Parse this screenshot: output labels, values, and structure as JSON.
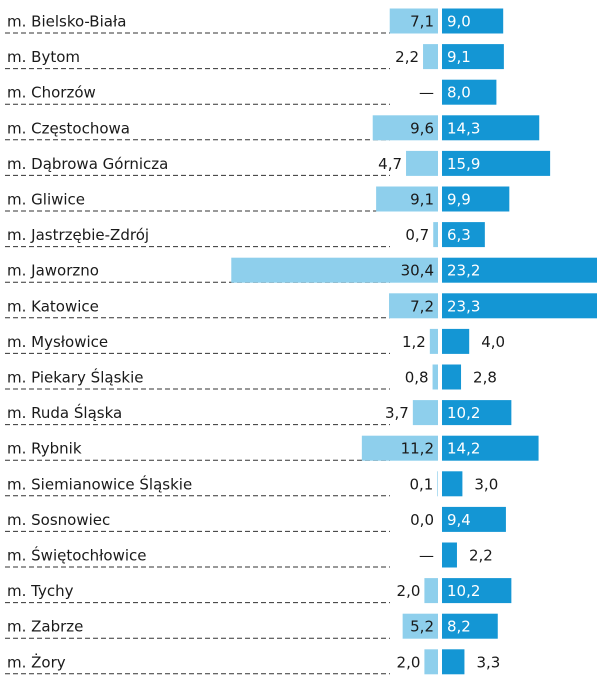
{
  "chart_data": {
    "type": "diverging-bar",
    "categories": [
      "m. Bielsko-Biała",
      "m. Bytom",
      "m. Chorzów",
      "m. Częstochowa",
      "m. Dąbrowa Górnicza",
      "m. Gliwice",
      "m. Jastrzębie-Zdrój",
      "m. Jaworzno",
      "m. Katowice",
      "m. Mysłowice",
      "m. Piekary Śląskie",
      "m. Ruda Śląska",
      "m. Rybnik",
      "m. Siemianowice Śląskie",
      "m. Sosnowiec",
      "m. Świętochłowice",
      "m. Tychy",
      "m. Zabrze",
      "m. Żory"
    ],
    "series": [
      {
        "color": "#8ecfec",
        "side": "left",
        "values": [
          7.1,
          2.2,
          null,
          9.6,
          4.7,
          9.1,
          0.7,
          30.4,
          7.2,
          1.2,
          0.8,
          3.7,
          11.2,
          0.1,
          0.0,
          null,
          2.0,
          5.2,
          2.0
        ],
        "value_labels": [
          "7,1",
          "2,2",
          "—",
          "9,6",
          "4,7",
          "9,1",
          "0,7",
          "30,4",
          "7,2",
          "1,2",
          "0,8",
          "3,7",
          "11,2",
          "0,1",
          "0,0",
          "—",
          "2,0",
          "5,2",
          "2,0"
        ]
      },
      {
        "color": "#1496d4",
        "side": "right",
        "values": [
          9.0,
          9.1,
          8.0,
          14.3,
          15.9,
          9.9,
          6.3,
          23.2,
          23.3,
          4.0,
          2.8,
          10.2,
          14.2,
          3.0,
          9.4,
          2.2,
          10.2,
          8.2,
          3.3
        ],
        "value_labels": [
          "9,0",
          "9,1",
          "8,0",
          "14,3",
          "15,9",
          "9,9",
          "6,3",
          "23,2",
          "23,3",
          "4,0",
          "2,8",
          "10,2",
          "14,2",
          "3,0",
          "9,4",
          "2,2",
          "10,2",
          "8,2",
          "3,3"
        ]
      }
    ]
  }
}
